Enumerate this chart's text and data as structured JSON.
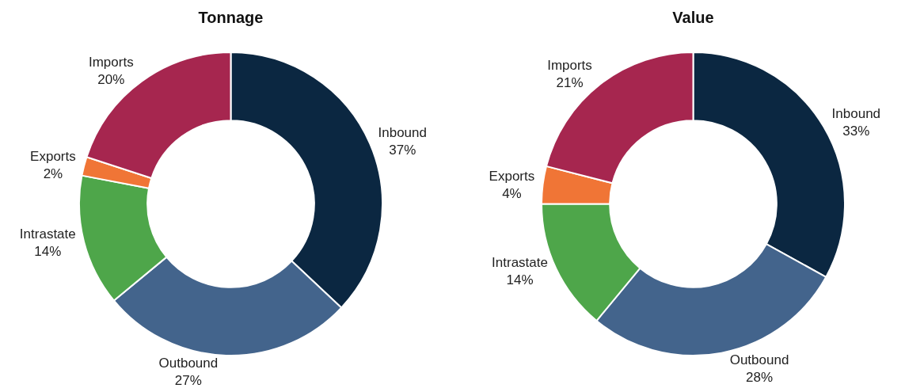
{
  "chart_data": [
    {
      "type": "donut",
      "title": "Tonnage",
      "categories": [
        "Inbound",
        "Outbound",
        "Intrastate",
        "Exports",
        "Imports"
      ],
      "values": [
        37,
        27,
        14,
        2,
        20
      ],
      "value_labels": [
        "37%",
        "27%",
        "14%",
        "2%",
        "20%"
      ],
      "colors": [
        "#0b2741",
        "#43648c",
        "#4ea64a",
        "#f07536",
        "#a6264f"
      ]
    },
    {
      "type": "donut",
      "title": "Value",
      "categories": [
        "Inbound",
        "Outbound",
        "Intrastate",
        "Exports",
        "Imports"
      ],
      "values": [
        33,
        28,
        14,
        4,
        21
      ],
      "value_labels": [
        "33%",
        "28%",
        "14%",
        "4%",
        "21%"
      ],
      "colors": [
        "#0b2741",
        "#43648c",
        "#4ea64a",
        "#f07536",
        "#a6264f"
      ]
    }
  ]
}
